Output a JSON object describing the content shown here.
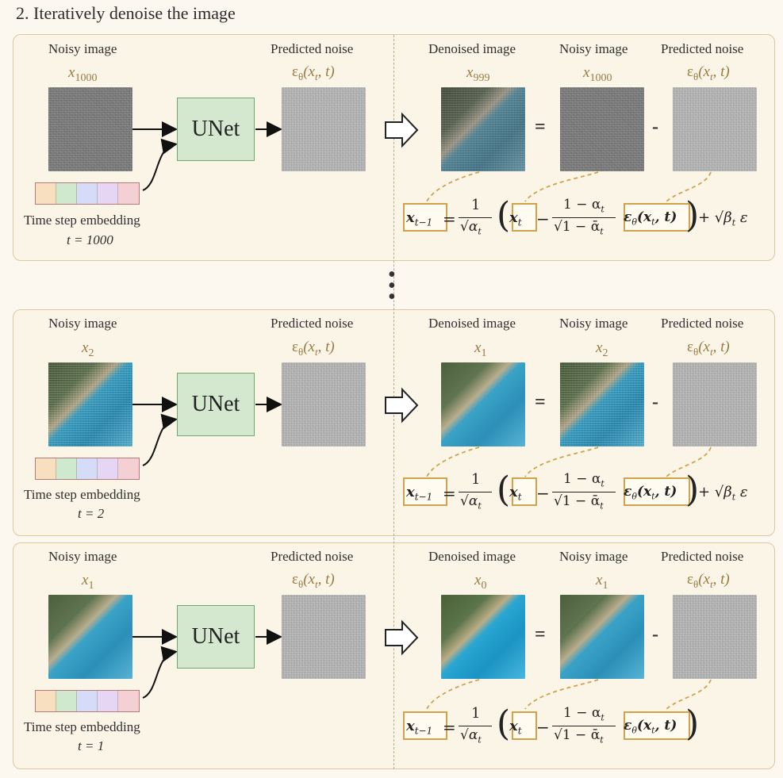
{
  "title": "2. Iteratively denoise the image",
  "labels": {
    "noisy_image": "Noisy image",
    "predicted_noise": "Predicted noise",
    "denoised_image": "Denoised image",
    "time_step_embedding": "Time step embedding",
    "unet": "UNet"
  },
  "formula_text": {
    "lhs": "x",
    "lhs_sub": "t−1",
    "eq": "=",
    "one": "1",
    "sqrt_alpha": "√α",
    "sqrt_alpha_sub": "t",
    "xt": "x",
    "xt_sub": "t",
    "minus": "−",
    "one_minus_alpha": "1 − α",
    "one_minus_alpha_sub": "t",
    "sqrt_one_minus_alpha_bar": "√1 − ᾱ",
    "sqrt_one_minus_alpha_bar_sub": "t",
    "eps": "ε",
    "eps_sub": "θ",
    "eps_args": "(x",
    "eps_args_sub": "t",
    "eps_args_end": ", t)",
    "plus_sigma": "+ √β",
    "plus_sigma_sub": "t",
    "noise_term": "ε",
    "equals_sign": "=",
    "minus_sign": "-"
  },
  "noise_symbol": {
    "eps": "ε",
    "eps_sub": "θ",
    "args": "(x",
    "args_sub": "t",
    "args_end": ", t)"
  },
  "panels": [
    {
      "noisy_in_symbol": "x",
      "noisy_in_sub": "1000",
      "timestep": "t = 1000",
      "denoised_symbol": "x",
      "denoised_sub": "999",
      "noisy_right_symbol": "x",
      "noisy_right_sub": "1000"
    },
    {
      "noisy_in_symbol": "x",
      "noisy_in_sub": "2",
      "timestep": "t = 2",
      "denoised_symbol": "x",
      "denoised_sub": "1",
      "noisy_right_symbol": "x",
      "noisy_right_sub": "2"
    },
    {
      "noisy_in_symbol": "x",
      "noisy_in_sub": "1",
      "timestep": "t = 1",
      "denoised_symbol": "x",
      "denoised_sub": "0",
      "noisy_right_symbol": "x",
      "noisy_right_sub": "1"
    }
  ],
  "embedding_colors": [
    "#f8dfbf",
    "#cfe9cf",
    "#d6dcf8",
    "#e6d6f3",
    "#f4cfd3"
  ],
  "colors": {
    "accent": "#d1a24c",
    "unet_fill": "#d4e8d0",
    "symbol": "#9a7a42"
  }
}
